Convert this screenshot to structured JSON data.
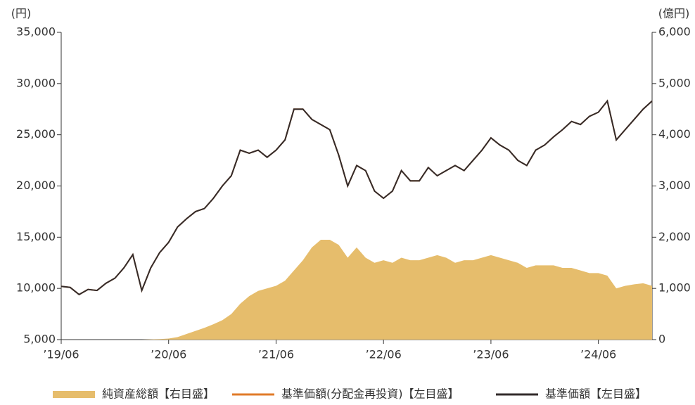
{
  "chart_data": {
    "type": "line-area",
    "y_unit_label": "(円)",
    "y2_unit_label": "(億円)",
    "x": [
      "2019-06",
      "2019-07",
      "2019-08",
      "2019-09",
      "2019-10",
      "2019-11",
      "2019-12",
      "2020-01",
      "2020-02",
      "2020-03",
      "2020-04",
      "2020-05",
      "2020-06",
      "2020-07",
      "2020-08",
      "2020-09",
      "2020-10",
      "2020-11",
      "2020-12",
      "2021-01",
      "2021-02",
      "2021-03",
      "2021-04",
      "2021-05",
      "2021-06",
      "2021-07",
      "2021-08",
      "2021-09",
      "2021-10",
      "2021-11",
      "2021-12",
      "2022-01",
      "2022-02",
      "2022-03",
      "2022-04",
      "2022-05",
      "2022-06",
      "2022-07",
      "2022-08",
      "2022-09",
      "2022-10",
      "2022-11",
      "2022-12",
      "2023-01",
      "2023-02",
      "2023-03",
      "2023-04",
      "2023-05",
      "2023-06",
      "2023-07",
      "2023-08",
      "2023-09",
      "2023-10",
      "2023-11",
      "2023-12",
      "2024-01",
      "2024-02",
      "2024-03",
      "2024-04",
      "2024-05",
      "2024-06",
      "2024-07",
      "2024-08",
      "2024-09",
      "2024-10",
      "2024-11",
      "2024-12"
    ],
    "xticks": [
      {
        "value": "2019-06",
        "label": "’19/06"
      },
      {
        "value": "2020-06",
        "label": "’20/06"
      },
      {
        "value": "2021-06",
        "label": "’21/06"
      },
      {
        "value": "2022-06",
        "label": "’22/06"
      },
      {
        "value": "2023-06",
        "label": "’23/06"
      },
      {
        "value": "2024-06",
        "label": "’24/06"
      }
    ],
    "ylim": [
      5000,
      35000
    ],
    "yticks": [
      {
        "value": 5000,
        "label": "5,000"
      },
      {
        "value": 10000,
        "label": "10,000"
      },
      {
        "value": 15000,
        "label": "15,000"
      },
      {
        "value": 20000,
        "label": "20,000"
      },
      {
        "value": 25000,
        "label": "25,000"
      },
      {
        "value": 30000,
        "label": "30,000"
      },
      {
        "value": 35000,
        "label": "35,000"
      }
    ],
    "y2lim": [
      0,
      6000
    ],
    "y2ticks": [
      0,
      {
        "value": 1000,
        "label": "1,000"
      },
      {
        "value": 2000,
        "label": "2,000"
      },
      {
        "value": 3000,
        "label": "3,000"
      },
      {
        "value": 4000,
        "label": "4,000"
      },
      {
        "value": 5000,
        "label": "5,000"
      },
      {
        "value": 6000,
        "label": "6,000"
      }
    ],
    "series": [
      {
        "name": "純資産総額【右目盛】",
        "color": "#e6bd6c",
        "kind": "area",
        "axis": "y2",
        "values": [
          0,
          0,
          0,
          0,
          0,
          0,
          0,
          0,
          0,
          0,
          5,
          10,
          20,
          50,
          110,
          170,
          230,
          300,
          380,
          500,
          700,
          850,
          950,
          1000,
          1050,
          1150,
          1350,
          1550,
          1800,
          1950,
          1950,
          1850,
          1600,
          1800,
          1600,
          1500,
          1550,
          1500,
          1600,
          1550,
          1550,
          1600,
          1650,
          1600,
          1500,
          1550,
          1550,
          1600,
          1650,
          1600,
          1550,
          1500,
          1400,
          1450,
          1450,
          1450,
          1400,
          1400,
          1350,
          1300,
          1300,
          1250,
          1000,
          1050,
          1080,
          1100,
          1050
        ]
      },
      {
        "name": "基準価額(分配金再投資)【左目盛】",
        "color": "#e07b29",
        "kind": "line",
        "axis": "y",
        "values": [
          10200,
          10100,
          9400,
          9900,
          9800,
          10500,
          11000,
          12000,
          13300,
          9800,
          12000,
          13500,
          14500,
          16000,
          16800,
          17500,
          17800,
          18800,
          20000,
          21000,
          23500,
          23200,
          23500,
          22800,
          23500,
          24500,
          27500,
          27500,
          26500,
          26000,
          25500,
          23000,
          20000,
          22000,
          21500,
          19500,
          18800,
          19500,
          21500,
          20500,
          20500,
          21800,
          21000,
          21500,
          22000,
          21500,
          22500,
          23500,
          24700,
          24000,
          23500,
          22500,
          22000,
          23500,
          24000,
          24800,
          25500,
          26300,
          26000,
          26800,
          27200,
          28300,
          24500,
          25500,
          26500,
          27500,
          28300
        ]
      },
      {
        "name": "基準価額【左目盛】",
        "color": "#332b2b",
        "kind": "line",
        "axis": "y",
        "values": [
          10200,
          10100,
          9400,
          9900,
          9800,
          10500,
          11000,
          12000,
          13300,
          9800,
          12000,
          13500,
          14500,
          16000,
          16800,
          17500,
          17800,
          18800,
          20000,
          21000,
          23500,
          23200,
          23500,
          22800,
          23500,
          24500,
          27500,
          27500,
          26500,
          26000,
          25500,
          23000,
          20000,
          22000,
          21500,
          19500,
          18800,
          19500,
          21500,
          20500,
          20500,
          21800,
          21000,
          21500,
          22000,
          21500,
          22500,
          23500,
          24700,
          24000,
          23500,
          22500,
          22000,
          23500,
          24000,
          24800,
          25500,
          26300,
          26000,
          26800,
          27200,
          28300,
          24500,
          25500,
          26500,
          27500,
          28300
        ]
      }
    ]
  }
}
